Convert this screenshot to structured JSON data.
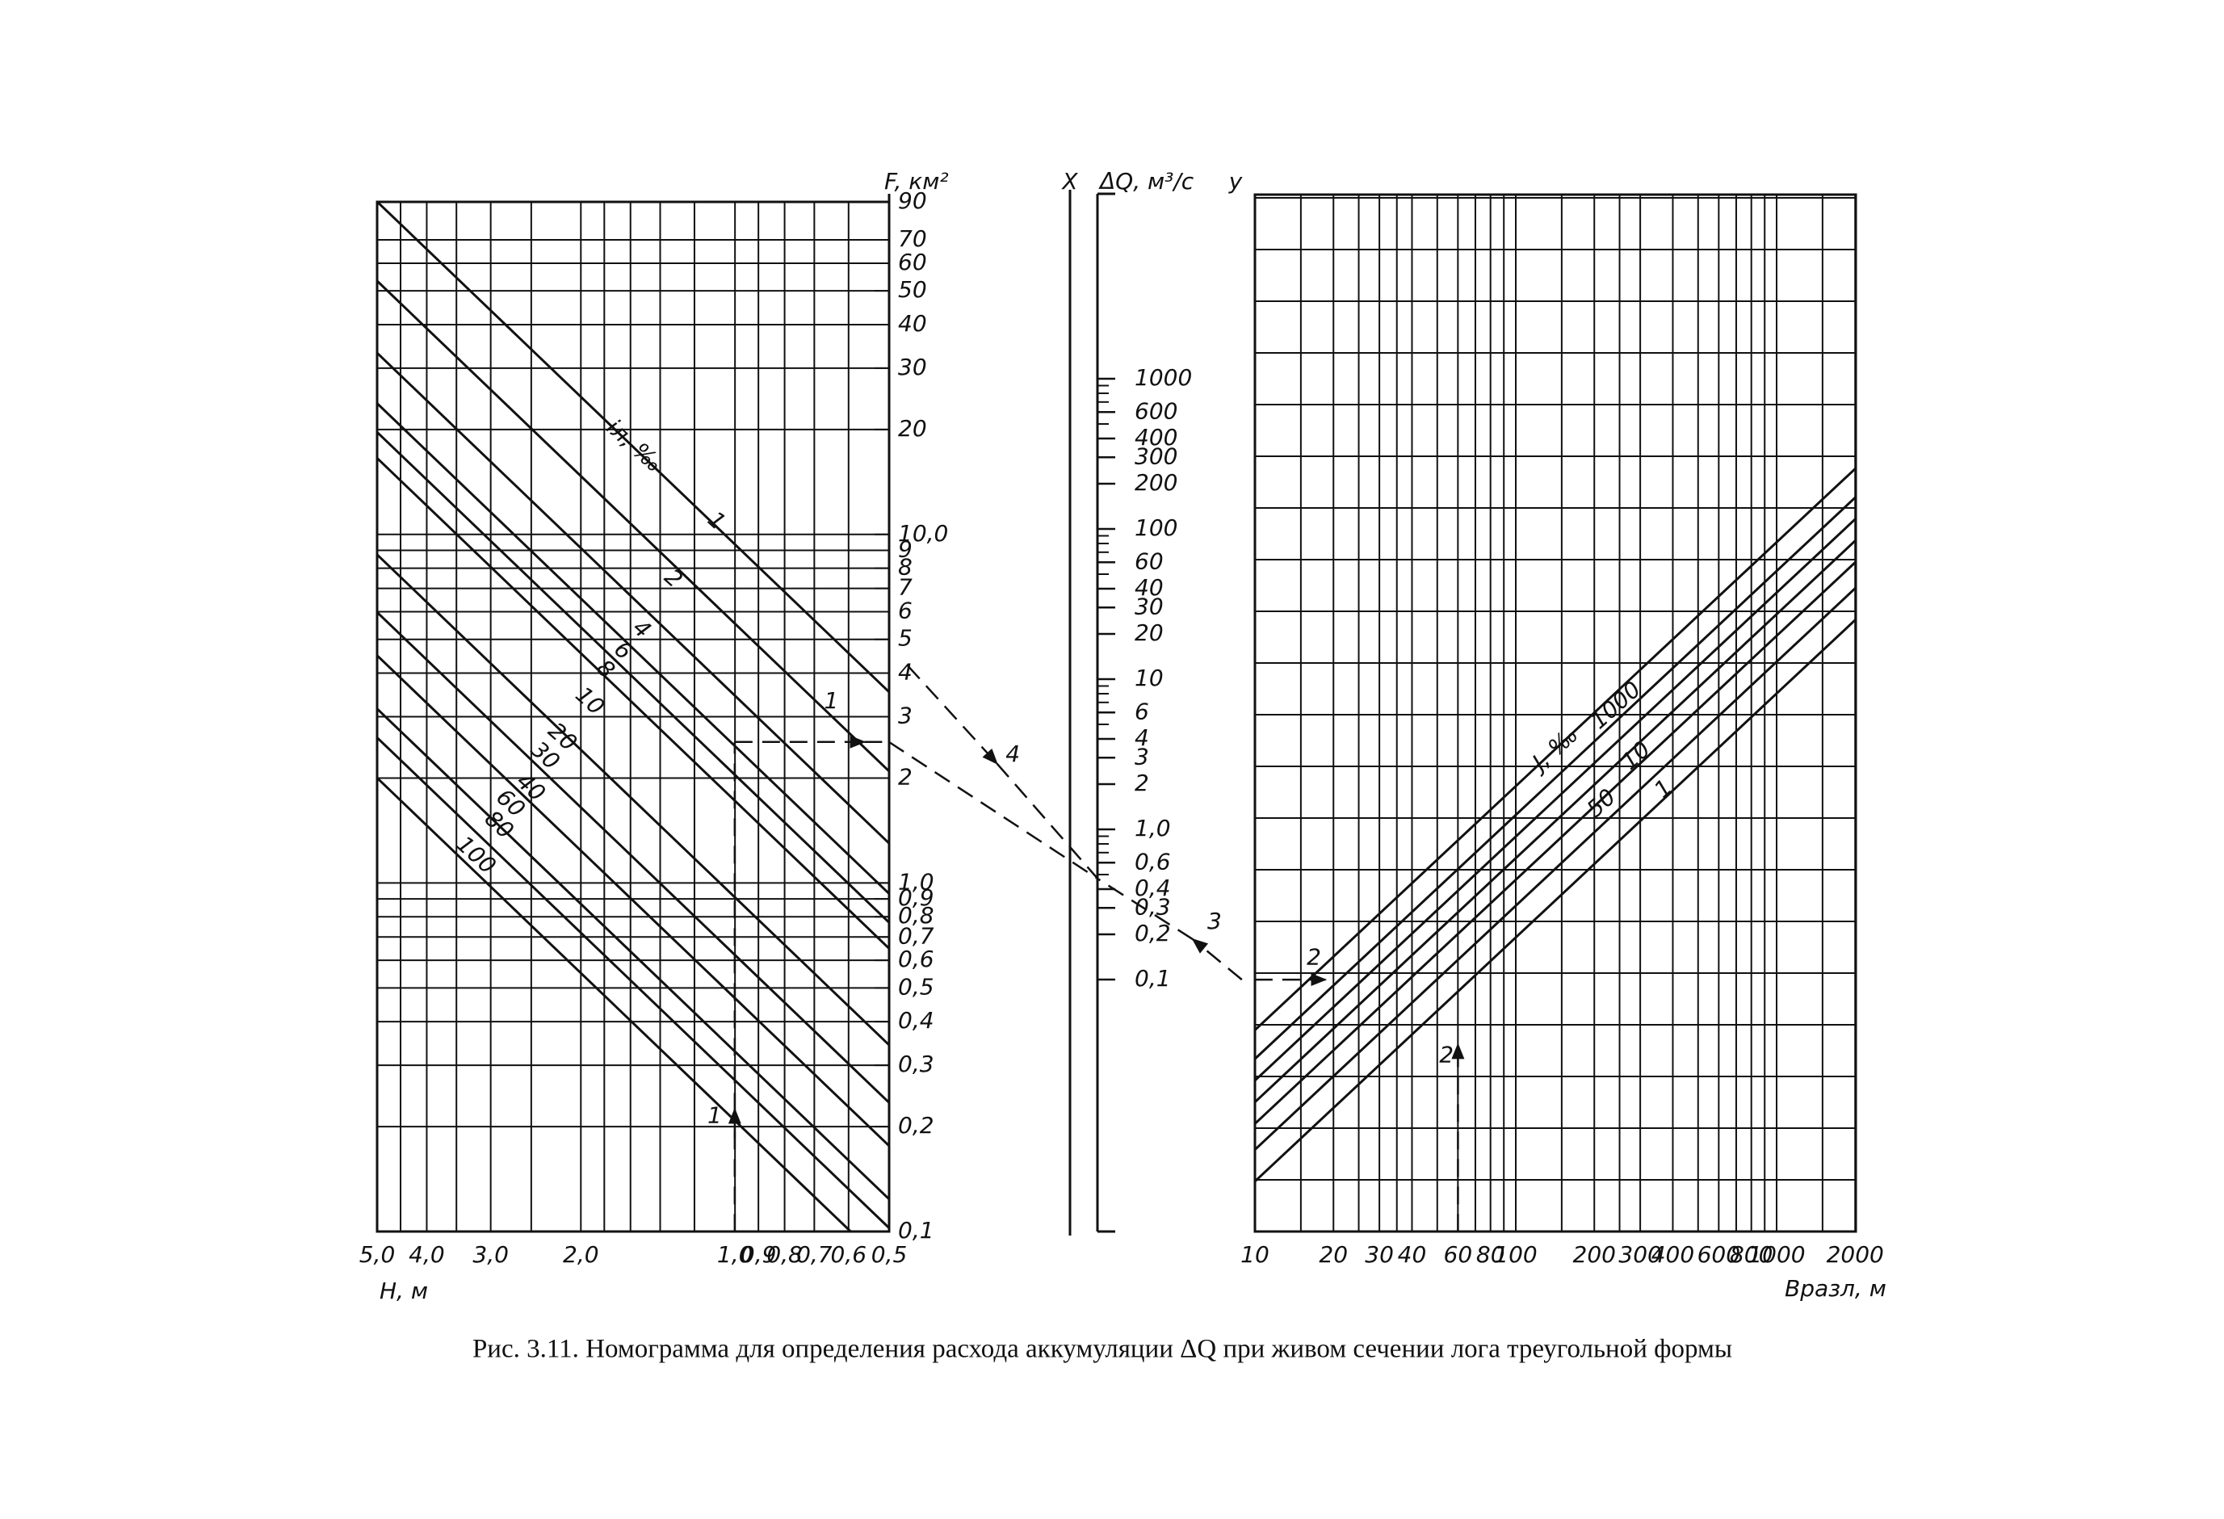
{
  "left_panel": {
    "y_axis_label": "F, км²",
    "y_ticks": [
      "90",
      "70",
      "60",
      "50",
      "40",
      "30",
      "20",
      "10,0",
      "9",
      "8",
      "7",
      "6",
      "5",
      "4",
      "3",
      "2",
      "1,0",
      "0,9",
      "0,8",
      "0,7",
      "0,6",
      "0,5",
      "0,4",
      "0,3",
      "0,2",
      "0,1"
    ],
    "x_axis_label": "H, м",
    "x_ticks": [
      "5,0",
      "4,0",
      "3,0",
      "2,0",
      "1,0",
      "0,9",
      "0,8",
      "0,7",
      "0,6",
      "0,5"
    ],
    "curve_group_label": "iл, ‰",
    "curve_labels": [
      "1",
      "2",
      "4",
      "6",
      "8",
      "10",
      "20",
      "30",
      "40",
      "60",
      "80",
      "100"
    ]
  },
  "middle_scale": {
    "x_label": "X",
    "label": "ΔQ, м³/с",
    "y_label": "y",
    "ticks": [
      "1000",
      "600",
      "400",
      "300",
      "200",
      "100",
      "60",
      "40",
      "30",
      "20",
      "10",
      "6",
      "4",
      "3",
      "2",
      "1,0",
      "0,6",
      "0,4",
      "0,3",
      "0,2",
      "0,1"
    ]
  },
  "right_panel": {
    "x_ticks": [
      "10",
      "20",
      "30",
      "40",
      "60",
      "80",
      "100",
      "200",
      "300",
      "400",
      "600",
      "800",
      "1000",
      "2000"
    ],
    "x_axis_label": "Bразл, м",
    "curve_group_label": "J, ‰",
    "curve_labels": [
      "1000",
      "50",
      "10",
      "1"
    ]
  },
  "route_labels": [
    "1",
    "4",
    "1",
    "2",
    "3",
    "2"
  ],
  "caption": "Рис. 3.11. Номограмма для определения расхода аккумуляции ΔQ при живом сечении лога треугольной формы"
}
